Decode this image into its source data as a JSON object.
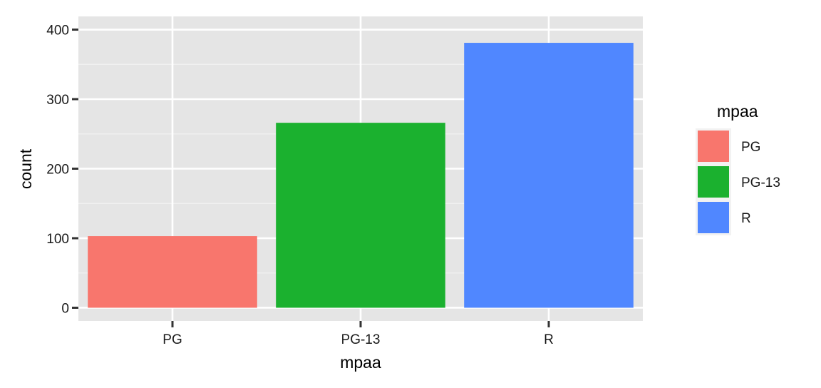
{
  "chart_data": {
    "type": "bar",
    "categories": [
      "PG",
      "PG-13",
      "R"
    ],
    "values": [
      103,
      266,
      381
    ],
    "colors": [
      "#F8766D",
      "#1BB12F",
      "#5087FF"
    ],
    "xlabel": "mpaa",
    "ylabel": "count",
    "ylim": [
      -19,
      419
    ],
    "yticks": [
      0,
      100,
      200,
      300,
      400
    ],
    "ytick_labels": [
      "0",
      "100",
      "200",
      "300",
      "400"
    ],
    "grid": true,
    "panel_background": "#E5E5E5",
    "legend": {
      "title": "mpaa",
      "placement": "right",
      "entries": [
        "PG",
        "PG-13",
        "R"
      ]
    }
  }
}
